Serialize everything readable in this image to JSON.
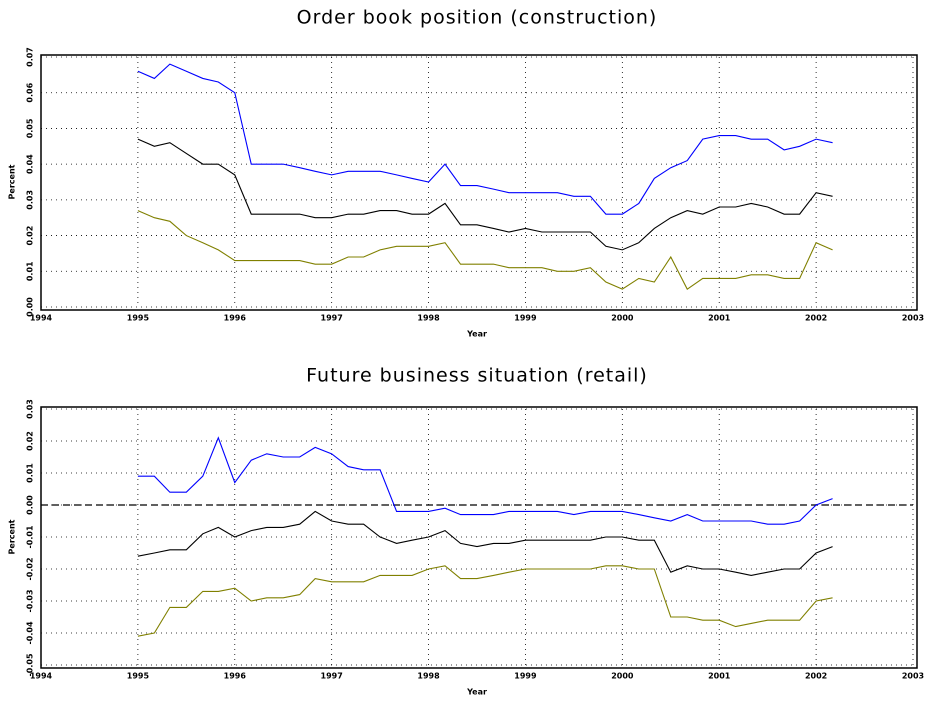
{
  "chart_data": [
    {
      "type": "line",
      "title": "Order book position (construction)",
      "x_label": "Year",
      "y_label": "Percent",
      "x": [
        1995,
        1995.17,
        1995.33,
        1995.5,
        1995.67,
        1995.83,
        1996,
        1996.17,
        1996.33,
        1996.5,
        1996.67,
        1996.83,
        1997,
        1997.17,
        1997.33,
        1997.5,
        1997.67,
        1997.83,
        1998,
        1998.17,
        1998.33,
        1998.5,
        1998.67,
        1998.83,
        1999,
        1999.17,
        1999.33,
        1999.5,
        1999.67,
        1999.83,
        2000,
        2000.17,
        2000.33,
        2000.5,
        2000.67,
        2000.83,
        2001,
        2001.17,
        2001.33,
        2001.5,
        2001.67,
        2001.83,
        2002,
        2002.17
      ],
      "series": [
        {
          "color": "#0000ff",
          "values": [
            0.066,
            0.064,
            0.068,
            0.066,
            0.064,
            0.063,
            0.06,
            0.04,
            0.04,
            0.04,
            0.039,
            0.038,
            0.037,
            0.038,
            0.038,
            0.038,
            0.037,
            0.036,
            0.035,
            0.04,
            0.034,
            0.034,
            0.033,
            0.032,
            0.032,
            0.032,
            0.032,
            0.031,
            0.031,
            0.026,
            0.026,
            0.029,
            0.036,
            0.039,
            0.041,
            0.047,
            0.048,
            0.048,
            0.047,
            0.047,
            0.044,
            0.045,
            0.047,
            0.046
          ]
        },
        {
          "color": "#000000",
          "values": [
            0.047,
            0.045,
            0.046,
            0.043,
            0.04,
            0.04,
            0.037,
            0.026,
            0.026,
            0.026,
            0.026,
            0.025,
            0.025,
            0.026,
            0.026,
            0.027,
            0.027,
            0.026,
            0.026,
            0.029,
            0.023,
            0.023,
            0.022,
            0.021,
            0.022,
            0.021,
            0.021,
            0.021,
            0.021,
            0.017,
            0.016,
            0.018,
            0.022,
            0.025,
            0.027,
            0.026,
            0.028,
            0.028,
            0.029,
            0.028,
            0.026,
            0.026,
            0.032,
            0.031
          ]
        },
        {
          "color": "#808000",
          "values": [
            0.027,
            0.025,
            0.024,
            0.02,
            0.018,
            0.016,
            0.013,
            0.013,
            0.013,
            0.013,
            0.013,
            0.012,
            0.012,
            0.014,
            0.014,
            0.016,
            0.017,
            0.017,
            0.017,
            0.018,
            0.012,
            0.012,
            0.012,
            0.011,
            0.011,
            0.011,
            0.01,
            0.01,
            0.011,
            0.007,
            0.005,
            0.008,
            0.007,
            0.014,
            0.005,
            0.008,
            0.008,
            0.008,
            0.009,
            0.009,
            0.008,
            0.008,
            0.018,
            0.016
          ]
        }
      ],
      "xlim": [
        1994,
        2003
      ],
      "xticks": [
        1994,
        1995,
        1996,
        1997,
        1998,
        1999,
        2000,
        2001,
        2002,
        2003
      ],
      "ylim": [
        0,
        0.07
      ],
      "yticks": [
        {
          "value": 0,
          "label": "0.00"
        },
        0.01,
        0.02,
        0.03,
        0.04,
        0.05,
        0.06,
        0.07
      ],
      "grid": true
    },
    {
      "type": "line",
      "title": "Future business situation (retail)",
      "x_label": "Year",
      "y_label": "Percent",
      "x": [
        1995,
        1995.17,
        1995.33,
        1995.5,
        1995.67,
        1995.83,
        1996,
        1996.17,
        1996.33,
        1996.5,
        1996.67,
        1996.83,
        1997,
        1997.17,
        1997.33,
        1997.5,
        1997.67,
        1997.83,
        1998,
        1998.17,
        1998.33,
        1998.5,
        1998.67,
        1998.83,
        1999,
        1999.17,
        1999.33,
        1999.5,
        1999.67,
        1999.83,
        2000,
        2000.17,
        2000.33,
        2000.5,
        2000.67,
        2000.83,
        2001,
        2001.17,
        2001.33,
        2001.5,
        2001.67,
        2001.83,
        2002,
        2002.17
      ],
      "series": [
        {
          "color": "#0000ff",
          "values": [
            0.009,
            0.009,
            0.004,
            0.004,
            0.009,
            0.021,
            0.007,
            0.014,
            0.016,
            0.015,
            0.015,
            0.018,
            0.016,
            0.012,
            0.011,
            0.011,
            -0.002,
            -0.002,
            -0.002,
            -0.001,
            -0.003,
            -0.003,
            -0.003,
            -0.002,
            -0.002,
            -0.002,
            -0.002,
            -0.003,
            -0.002,
            -0.002,
            -0.002,
            -0.003,
            -0.004,
            -0.005,
            -0.003,
            -0.005,
            -0.005,
            -0.005,
            -0.005,
            -0.006,
            -0.006,
            -0.005,
            0.0,
            0.002
          ]
        },
        {
          "color": "#000000",
          "values": [
            -0.016,
            -0.015,
            -0.014,
            -0.014,
            -0.009,
            -0.007,
            -0.01,
            -0.008,
            -0.007,
            -0.007,
            -0.006,
            -0.002,
            -0.005,
            -0.006,
            -0.006,
            -0.01,
            -0.012,
            -0.011,
            -0.01,
            -0.008,
            -0.012,
            -0.013,
            -0.012,
            -0.012,
            -0.011,
            -0.011,
            -0.011,
            -0.011,
            -0.011,
            -0.01,
            -0.01,
            -0.011,
            -0.011,
            -0.021,
            -0.019,
            -0.02,
            -0.02,
            -0.021,
            -0.022,
            -0.021,
            -0.02,
            -0.02,
            -0.015,
            -0.013
          ]
        },
        {
          "color": "#808000",
          "values": [
            -0.041,
            -0.04,
            -0.032,
            -0.032,
            -0.027,
            -0.027,
            -0.026,
            -0.03,
            -0.029,
            -0.029,
            -0.028,
            -0.023,
            -0.024,
            -0.024,
            -0.024,
            -0.022,
            -0.022,
            -0.022,
            -0.02,
            -0.019,
            -0.023,
            -0.023,
            -0.022,
            -0.021,
            -0.02,
            -0.02,
            -0.02,
            -0.02,
            -0.02,
            -0.019,
            -0.019,
            -0.02,
            -0.02,
            -0.035,
            -0.035,
            -0.036,
            -0.036,
            -0.038,
            -0.037,
            -0.036,
            -0.036,
            -0.036,
            -0.03,
            -0.029
          ]
        }
      ],
      "xlim": [
        1994,
        2003
      ],
      "xticks": [
        1994,
        1995,
        1996,
        1997,
        1998,
        1999,
        2000,
        2001,
        2002,
        2003
      ],
      "ylim": [
        -0.05,
        0.03
      ],
      "yticks": [
        -0.05,
        -0.04,
        -0.03,
        -0.02,
        -0.01,
        {
          "value": 0,
          "label": "0.00"
        },
        0.01,
        0.02,
        0.03
      ],
      "hline": 0,
      "grid": true
    }
  ]
}
